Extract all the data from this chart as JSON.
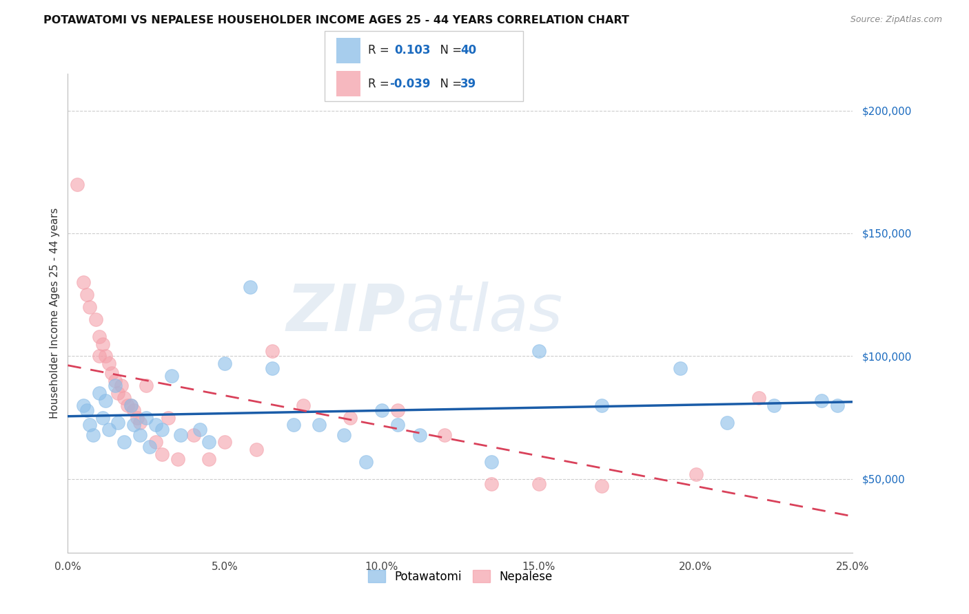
{
  "title": "POTAWATOMI VS NEPALESE HOUSEHOLDER INCOME AGES 25 - 44 YEARS CORRELATION CHART",
  "source": "Source: ZipAtlas.com",
  "ylabel": "Householder Income Ages 25 - 44 years",
  "xlabel_ticks": [
    "0.0%",
    "5.0%",
    "10.0%",
    "15.0%",
    "20.0%",
    "25.0%"
  ],
  "xlabel_vals": [
    0.0,
    5.0,
    10.0,
    15.0,
    20.0,
    25.0
  ],
  "ylabel_ticks": [
    "$50,000",
    "$100,000",
    "$150,000",
    "$200,000"
  ],
  "ylabel_vals": [
    50000,
    100000,
    150000,
    200000
  ],
  "xlim": [
    0.0,
    25.0
  ],
  "ylim": [
    20000,
    215000
  ],
  "legend_label1": "Potawatomi",
  "legend_label2": "Nepalese",
  "R1": "0.103",
  "N1": "40",
  "R2": "-0.039",
  "N2": "39",
  "color_blue": "#8abde8",
  "color_pink": "#f4a0aa",
  "color_line_blue": "#1a5ca8",
  "color_line_pink": "#d9415a",
  "watermark_zip": "ZIP",
  "watermark_atlas": "atlas",
  "potawatomi_x": [
    0.5,
    0.6,
    0.7,
    0.8,
    1.0,
    1.1,
    1.2,
    1.3,
    1.5,
    1.6,
    1.8,
    2.0,
    2.1,
    2.3,
    2.5,
    2.6,
    2.8,
    3.0,
    3.3,
    3.6,
    4.2,
    4.5,
    5.0,
    5.8,
    6.5,
    7.2,
    8.0,
    8.8,
    9.5,
    10.0,
    10.5,
    11.2,
    13.5,
    15.0,
    17.0,
    19.5,
    21.0,
    22.5,
    24.0,
    24.5
  ],
  "potawatomi_y": [
    80000,
    78000,
    72000,
    68000,
    85000,
    75000,
    82000,
    70000,
    88000,
    73000,
    65000,
    80000,
    72000,
    68000,
    75000,
    63000,
    72000,
    70000,
    92000,
    68000,
    70000,
    65000,
    97000,
    128000,
    95000,
    72000,
    72000,
    68000,
    57000,
    78000,
    72000,
    68000,
    57000,
    102000,
    80000,
    95000,
    73000,
    80000,
    82000,
    80000
  ],
  "nepalese_x": [
    0.3,
    0.5,
    0.6,
    0.7,
    0.9,
    1.0,
    1.0,
    1.1,
    1.2,
    1.3,
    1.4,
    1.5,
    1.6,
    1.7,
    1.8,
    1.9,
    2.0,
    2.1,
    2.2,
    2.3,
    2.5,
    2.8,
    3.0,
    3.2,
    3.5,
    4.0,
    4.5,
    5.0,
    6.0,
    6.5,
    7.5,
    9.0,
    10.5,
    12.0,
    13.5,
    15.0,
    17.0,
    20.0,
    22.0
  ],
  "nepalese_y": [
    170000,
    130000,
    125000,
    120000,
    115000,
    108000,
    100000,
    105000,
    100000,
    97000,
    93000,
    90000,
    85000,
    88000,
    83000,
    80000,
    80000,
    78000,
    75000,
    73000,
    88000,
    65000,
    60000,
    75000,
    58000,
    68000,
    58000,
    65000,
    62000,
    102000,
    80000,
    75000,
    78000,
    68000,
    48000,
    48000,
    47000,
    52000,
    83000
  ]
}
